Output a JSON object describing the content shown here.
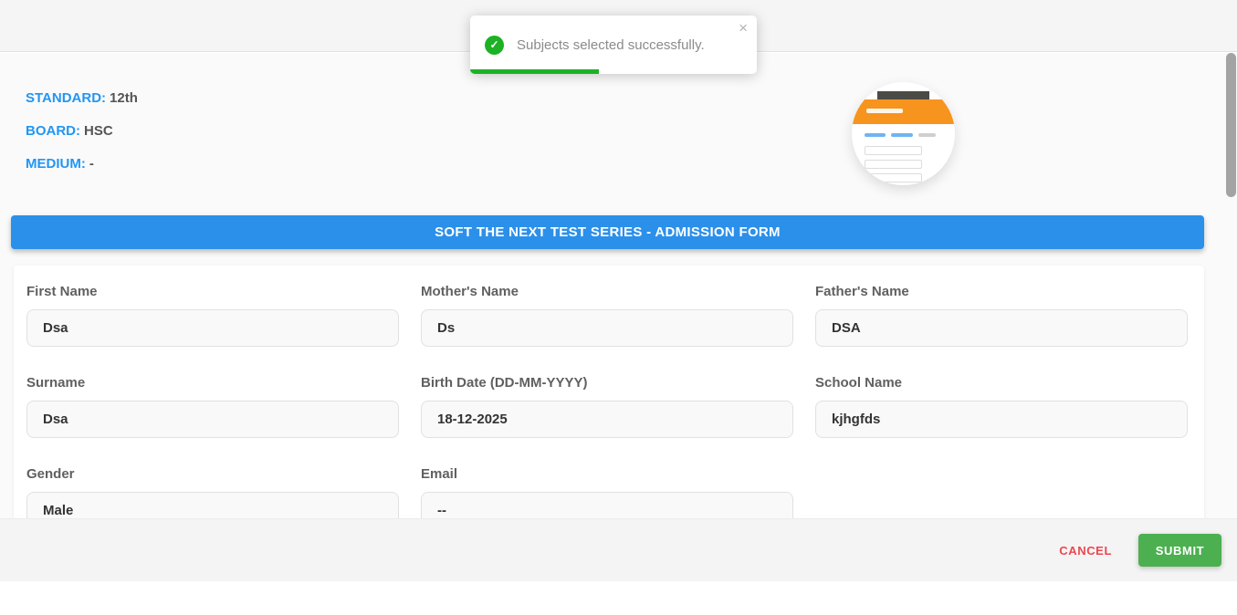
{
  "toast": {
    "message": "Subjects selected successfully.",
    "check_glyph": "✓",
    "close_glyph": "×",
    "progress_percent": 45
  },
  "student_info": {
    "items": [
      {
        "label": "STANDARD:",
        "value": "12th"
      },
      {
        "label": "BOARD:",
        "value": "HSC"
      },
      {
        "label": "MEDIUM:",
        "value": "-"
      }
    ]
  },
  "banner": {
    "title": "SOFT THE NEXT TEST SERIES - ADMISSION FORM"
  },
  "form": {
    "fields": [
      {
        "label": "First Name",
        "value": "Dsa"
      },
      {
        "label": "Mother's Name",
        "value": "Ds"
      },
      {
        "label": "Father's Name",
        "value": "DSA"
      },
      {
        "label": "Surname",
        "value": "Dsa"
      },
      {
        "label": "Birth Date (DD-MM-YYYY)",
        "value": "18-12-2025"
      },
      {
        "label": "School Name",
        "value": "kjhgfds"
      },
      {
        "label": "Gender",
        "value": "Male"
      },
      {
        "label": "Email",
        "value": "--"
      }
    ]
  },
  "footer": {
    "cancel_label": "CANCEL",
    "submit_label": "SUBMIT"
  },
  "colors": {
    "accent_blue": "#2b90ea",
    "label_blue": "#2196f3",
    "toast_green": "#1db125",
    "submit_green": "#4caf50",
    "cancel_red": "#ea4850",
    "thumb_orange": "#f7941e"
  }
}
